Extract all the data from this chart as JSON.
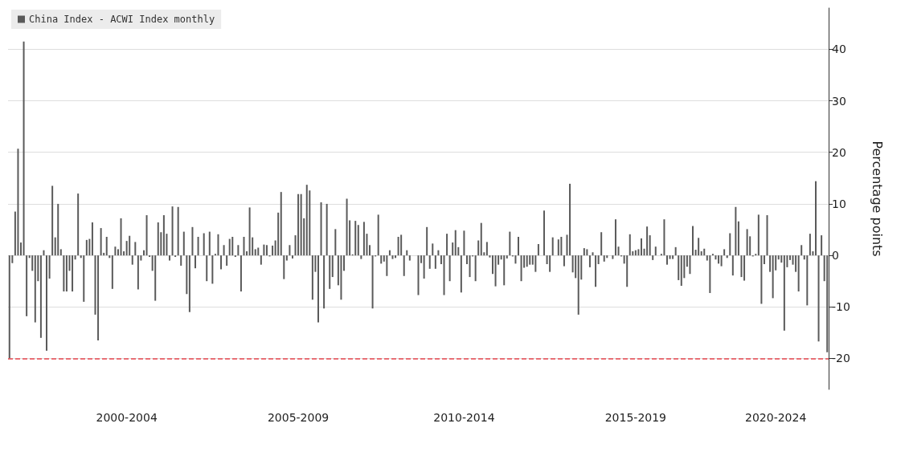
{
  "chart_data": {
    "type": "bar",
    "ylabel": "Percentage points",
    "categories": [
      null,
      null,
      null,
      null,
      null,
      null,
      null,
      null,
      null,
      null,
      null,
      null,
      null,
      null,
      null,
      null,
      null,
      null,
      null,
      null,
      null,
      null,
      null,
      null,
      null,
      null,
      null,
      null,
      null,
      null,
      null,
      null,
      null,
      null,
      null,
      null,
      null,
      null,
      null,
      null,
      null,
      "2000-2004",
      null,
      null,
      null,
      null,
      null,
      null,
      null,
      null,
      null,
      null,
      null,
      null,
      null,
      null,
      null,
      null,
      null,
      null,
      null,
      null,
      null,
      null,
      null,
      null,
      null,
      null,
      null,
      null,
      null,
      null,
      null,
      null,
      null,
      null,
      null,
      null,
      null,
      null,
      null,
      null,
      null,
      null,
      null,
      null,
      null,
      null,
      null,
      null,
      null,
      null,
      null,
      null,
      null,
      null,
      null,
      null,
      null,
      null,
      null,
      "2005-2009",
      null,
      null,
      null,
      null,
      null,
      null,
      null,
      null,
      null,
      null,
      null,
      null,
      null,
      null,
      null,
      null,
      null,
      null,
      null,
      null,
      null,
      null,
      null,
      null,
      null,
      null,
      null,
      null,
      null,
      null,
      null,
      null,
      null,
      null,
      null,
      null,
      null,
      null,
      null,
      null,
      null,
      null,
      null,
      null,
      null,
      null,
      null,
      null,
      null,
      null,
      null,
      null,
      null,
      null,
      null,
      null,
      null,
      "2010-2014",
      null,
      null,
      null,
      null,
      null,
      null,
      null,
      null,
      null,
      null,
      null,
      null,
      null,
      null,
      null,
      null,
      null,
      null,
      null,
      null,
      null,
      null,
      null,
      null,
      null,
      null,
      null,
      null,
      null,
      null,
      null,
      null,
      null,
      null,
      null,
      null,
      null,
      null,
      null,
      null,
      null,
      null,
      null,
      null,
      null,
      null,
      null,
      null,
      null,
      null,
      null,
      null,
      null,
      null,
      null,
      null,
      null,
      null,
      null,
      "2015-2019",
      null,
      null,
      null,
      null,
      null,
      null,
      null,
      null,
      null,
      null,
      null,
      null,
      null,
      null,
      null,
      null,
      null,
      null,
      null,
      null,
      null,
      null,
      null,
      null,
      null,
      null,
      null,
      null,
      null,
      null,
      null,
      null,
      null,
      null,
      null,
      null,
      null,
      null,
      null,
      null,
      null,
      null,
      null,
      null,
      null,
      null,
      null,
      null,
      "2020-2024",
      null,
      null,
      null,
      null,
      null,
      null,
      null,
      null,
      null,
      null,
      null,
      null,
      null,
      null,
      null,
      null,
      null,
      null
    ],
    "series": [
      {
        "name": "China Index - ACWI Index monthly",
        "color": "#5a5a5a",
        "values": [
          -20,
          -1.5,
          8.5,
          20.7,
          2.5,
          41.5,
          -11.8,
          -0.5,
          -3,
          -13,
          -5,
          -16,
          1,
          -18.5,
          -4.5,
          13.5,
          3.5,
          10,
          1.2,
          -7,
          -7,
          -3,
          -7,
          -0.8,
          12,
          -0.5,
          -9,
          3,
          3.2,
          6.4,
          -11.5,
          -16.5,
          5.3,
          0.5,
          3.6,
          -0.5,
          -6.5,
          1.7,
          1.2,
          7.2,
          0.8,
          2.8,
          3.8,
          -1.8,
          2.6,
          -6.6,
          -1,
          1,
          7.8,
          -0.3,
          -3,
          -8.8,
          6.4,
          4.5,
          7.8,
          4.2,
          -1,
          9.5,
          -0.3,
          9.4,
          -2,
          4.6,
          -7.5,
          -11,
          5.5,
          -2.5,
          3.6,
          0,
          4.3,
          -5,
          4.6,
          -5.5,
          0.3,
          4.1,
          -2.7,
          2,
          -2,
          3.2,
          3.6,
          -0.3,
          2,
          -7,
          3.6,
          0.8,
          9.3,
          3.5,
          1.2,
          1.5,
          -1.8,
          2.1,
          2,
          -0.2,
          1.9,
          2.9,
          8.3,
          12.3,
          -4.6,
          -1,
          2,
          -0.6,
          3.9,
          11.9,
          11.9,
          7.2,
          13.7,
          12.6,
          -8.6,
          -3.2,
          -13,
          10.3,
          -10.3,
          10,
          -6.5,
          -4.2,
          5.1,
          -5.8,
          -8.6,
          -3,
          11,
          6.8,
          0.2,
          6.7,
          5.9,
          -0.7,
          6.5,
          4.2,
          2,
          -10.3,
          -0.2,
          7.9,
          -1.6,
          -1.2,
          -4,
          1,
          -0.7,
          -0.5,
          3.6,
          4,
          -4,
          1,
          -1,
          0,
          0,
          -7.7,
          -1.5,
          -4.5,
          5.5,
          -2.6,
          2.3,
          -2.6,
          1,
          -1.7,
          -7.7,
          4.2,
          -5,
          2.5,
          4.9,
          1.6,
          -7.2,
          4.8,
          -1.7,
          -4.2,
          -0.2,
          -5,
          2.9,
          6.3,
          0.6,
          2.6,
          -0.4,
          -3.6,
          -6,
          -1.8,
          -0.8,
          -5.8,
          -0.6,
          4.6,
          -0.2,
          -1.6,
          3.6,
          -5,
          -2.4,
          -2.2,
          -1.8,
          -1.8,
          -3.2,
          2.2,
          0,
          8.7,
          -1.7,
          -3.2,
          3.5,
          0,
          3.1,
          3.6,
          -2.1,
          4,
          13.9,
          -3.3,
          -4.4,
          -11.5,
          -4.7,
          1.4,
          1.2,
          -2.3,
          0.6,
          -6.1,
          -1.7,
          4.5,
          -1.2,
          -0.5,
          0,
          -0.7,
          7,
          1.7,
          -0.2,
          -1.6,
          -6.1,
          4.1,
          0.8,
          1,
          1.2,
          3.3,
          1.3,
          5.6,
          3.9,
          -0.9,
          1.7,
          0,
          0.3,
          7,
          -1.8,
          -0.7,
          -0.7,
          1.6,
          -4.8,
          -5.9,
          -4.4,
          -2.2,
          -3.6,
          5.7,
          1.1,
          3.4,
          0.8,
          1.3,
          -1,
          -7.3,
          0.3,
          -0.8,
          -1.6,
          -2.1,
          1.2,
          -0.5,
          4.3,
          -3.9,
          9.4,
          6.6,
          -4.2,
          -4.9,
          5.1,
          3.7,
          -0.2,
          0.3,
          7.9,
          -9.4,
          -1.7,
          7.8,
          -3.2,
          -8.3,
          -2.9,
          -0.8,
          -1.4,
          -14.6,
          -2.3,
          -0.9,
          -1.8,
          -3.2,
          -7,
          2,
          -0.8,
          -9.7,
          4.2,
          0.8,
          14.4,
          -16.7,
          3.9,
          -5,
          -18.8
        ]
      }
    ],
    "ylim": [
      -26,
      48
    ],
    "yticks": [
      -20,
      -10,
      0,
      10,
      20,
      30,
      40
    ],
    "ref_lines": [
      {
        "axis": "y",
        "value": -20,
        "color": "#e8474f",
        "line_style": "dashed"
      }
    ],
    "grid": "y",
    "legend": "top left"
  }
}
